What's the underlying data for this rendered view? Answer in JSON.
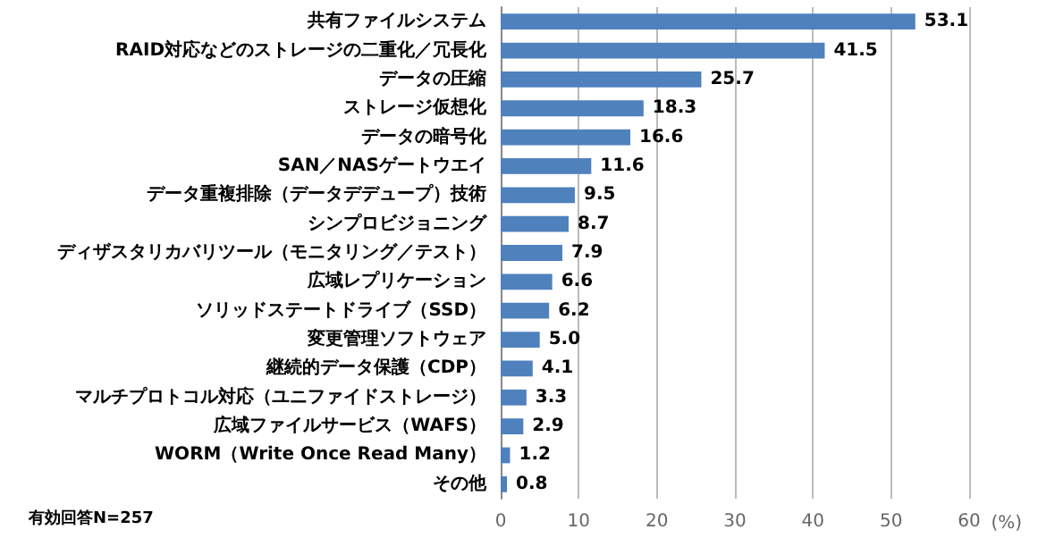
{
  "chart_data": {
    "type": "bar",
    "orientation": "horizontal",
    "categories": [
      "共有ファイルシステム",
      "RAID対応などのストレージの二重化／冗長化",
      "データの圧縮",
      "ストレージ仮想化",
      "データの暗号化",
      "SAN／NASゲートウエイ",
      "データ重複排除（データデデュープ）技術",
      "シンプロビジョニング",
      "ディザスタリカバリツール（モニタリング／テスト）",
      "広域レプリケーション",
      "ソリッドステートドライブ（SSD）",
      "変更管理ソフトウェア",
      "継続的データ保護（CDP）",
      "マルチプロトコル対応（ユニファイドストレージ）",
      "広域ファイルサービス（WAFS）",
      "WORM（Write Once Read Many）",
      "その他"
    ],
    "values": [
      53.1,
      41.5,
      25.7,
      18.3,
      16.6,
      11.6,
      9.5,
      8.7,
      7.9,
      6.6,
      6.2,
      5.0,
      4.1,
      3.3,
      2.9,
      1.2,
      0.8
    ],
    "value_labels": [
      "53.1",
      "41.5",
      "25.7",
      "18.3",
      "16.6",
      "11.6",
      "9.5",
      "8.7",
      "7.9",
      "6.6",
      "6.2",
      "5.0",
      "4.1",
      "3.3",
      "2.9",
      "1.2",
      "0.8"
    ],
    "color": "#4f81bd",
    "xlim": [
      0,
      60
    ],
    "xticks": [
      0,
      10,
      20,
      30,
      40,
      50,
      60
    ],
    "xlabel": "(%)",
    "grid": "x",
    "annotations": [
      "有効回答N=257"
    ]
  }
}
